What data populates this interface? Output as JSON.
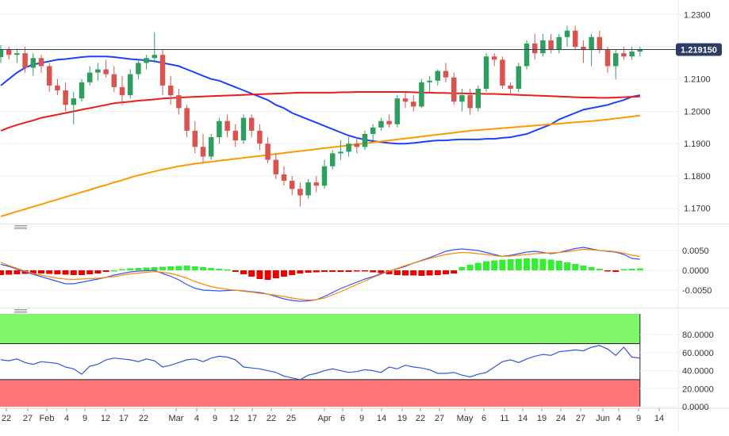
{
  "chart_data": [
    {
      "type": "candlestick",
      "title": "",
      "ylim": [
        1.166,
        1.2335
      ],
      "y_ticks": [
        "1.2300",
        "1.2200",
        "1.2100",
        "1.2000",
        "1.1900",
        "1.1800",
        "1.1700"
      ],
      "x_ticks": [
        "22",
        "27",
        "Feb",
        "4",
        "9",
        "12",
        "17",
        "22",
        "Mar",
        "4",
        "9",
        "12",
        "17",
        "22",
        "25",
        "Apr",
        "6",
        "9",
        "14",
        "19",
        "22",
        "27",
        "May",
        "6",
        "11",
        "14",
        "19",
        "24",
        "27",
        "Jun",
        "4",
        "9",
        "14"
      ],
      "current_price": "1.219150",
      "ohlc": [
        [
          1.2168,
          1.2205,
          1.215,
          1.219
        ],
        [
          1.219,
          1.22,
          1.216,
          1.2175
        ],
        [
          1.2175,
          1.2195,
          1.215,
          1.218
        ],
        [
          1.218,
          1.22,
          1.212,
          1.2135
        ],
        [
          1.2135,
          1.218,
          1.211,
          1.2165
        ],
        [
          1.2165,
          1.2175,
          1.212,
          1.214
        ],
        [
          1.214,
          1.215,
          1.206,
          1.208
        ],
        [
          1.208,
          1.21,
          1.205,
          1.2065
        ],
        [
          1.2065,
          1.209,
          1.2,
          1.202
        ],
        [
          1.202,
          1.206,
          1.196,
          1.204
        ],
        [
          1.204,
          1.21,
          1.203,
          1.209
        ],
        [
          1.209,
          1.214,
          1.208,
          1.212
        ],
        [
          1.212,
          1.215,
          1.2095,
          1.213
        ],
        [
          1.213,
          1.216,
          1.2105,
          1.2115
        ],
        [
          1.2115,
          1.214,
          1.206,
          1.2075
        ],
        [
          1.2075,
          1.211,
          1.202,
          1.205
        ],
        [
          1.205,
          1.213,
          1.204,
          1.2115
        ],
        [
          1.2115,
          1.216,
          1.21,
          1.215
        ],
        [
          1.215,
          1.2175,
          1.213,
          1.2165
        ],
        [
          1.2165,
          1.2245,
          1.215,
          1.2175
        ],
        [
          1.2175,
          1.219,
          1.205,
          1.208
        ],
        [
          1.208,
          1.211,
          1.202,
          1.205
        ],
        [
          1.205,
          1.207,
          1.199,
          1.201
        ],
        [
          1.201,
          1.202,
          1.192,
          1.194
        ],
        [
          1.194,
          1.197,
          1.187,
          1.189
        ],
        [
          1.189,
          1.193,
          1.184,
          1.186
        ],
        [
          1.186,
          1.193,
          1.185,
          1.192
        ],
        [
          1.192,
          1.198,
          1.19,
          1.197
        ],
        [
          1.197,
          1.199,
          1.192,
          1.194
        ],
        [
          1.194,
          1.196,
          1.189,
          1.191
        ],
        [
          1.191,
          1.199,
          1.19,
          1.198
        ],
        [
          1.198,
          1.199,
          1.192,
          1.194
        ],
        [
          1.194,
          1.196,
          1.188,
          1.19
        ],
        [
          1.19,
          1.192,
          1.184,
          1.185
        ],
        [
          1.185,
          1.187,
          1.179,
          1.1805
        ],
        [
          1.1805,
          1.183,
          1.177,
          1.1785
        ],
        [
          1.1785,
          1.18,
          1.174,
          1.176
        ],
        [
          1.176,
          1.178,
          1.1705,
          1.174
        ],
        [
          1.174,
          1.179,
          1.173,
          1.178
        ],
        [
          1.178,
          1.18,
          1.175,
          1.177
        ],
        [
          1.177,
          1.185,
          1.176,
          1.183
        ],
        [
          1.183,
          1.188,
          1.182,
          1.187
        ],
        [
          1.187,
          1.191,
          1.185,
          1.1875
        ],
        [
          1.1875,
          1.192,
          1.186,
          1.19
        ],
        [
          1.19,
          1.192,
          1.187,
          1.189
        ],
        [
          1.189,
          1.194,
          1.188,
          1.193
        ],
        [
          1.193,
          1.196,
          1.191,
          1.195
        ],
        [
          1.195,
          1.198,
          1.194,
          1.197
        ],
        [
          1.197,
          1.199,
          1.195,
          1.196
        ],
        [
          1.196,
          1.205,
          1.195,
          1.204
        ],
        [
          1.204,
          1.206,
          1.201,
          1.203
        ],
        [
          1.203,
          1.205,
          1.2,
          1.2015
        ],
        [
          1.2015,
          1.21,
          1.201,
          1.209
        ],
        [
          1.209,
          1.211,
          1.206,
          1.2095
        ],
        [
          1.2095,
          1.213,
          1.208,
          1.2125
        ],
        [
          1.2125,
          1.215,
          1.209,
          1.2105
        ],
        [
          1.2105,
          1.212,
          1.202,
          1.203
        ],
        [
          1.203,
          1.207,
          1.2,
          1.205
        ],
        [
          1.205,
          1.207,
          1.199,
          1.201
        ],
        [
          1.201,
          1.208,
          1.2,
          1.207
        ],
        [
          1.207,
          1.218,
          1.206,
          1.217
        ],
        [
          1.217,
          1.218,
          1.214,
          1.216
        ],
        [
          1.216,
          1.217,
          1.207,
          1.208
        ],
        [
          1.208,
          1.209,
          1.205,
          1.207
        ],
        [
          1.207,
          1.215,
          1.206,
          1.214
        ],
        [
          1.214,
          1.222,
          1.213,
          1.221
        ],
        [
          1.221,
          1.224,
          1.216,
          1.218
        ],
        [
          1.218,
          1.224,
          1.217,
          1.222
        ],
        [
          1.222,
          1.224,
          1.218,
          1.219
        ],
        [
          1.219,
          1.224,
          1.218,
          1.223
        ],
        [
          1.223,
          1.2265,
          1.22,
          1.225
        ],
        [
          1.225,
          1.2265,
          1.219,
          1.22
        ],
        [
          1.22,
          1.222,
          1.215,
          1.219
        ],
        [
          1.219,
          1.224,
          1.214,
          1.223
        ],
        [
          1.223,
          1.225,
          1.218,
          1.219
        ],
        [
          1.219,
          1.22,
          1.212,
          1.214
        ],
        [
          1.214,
          1.219,
          1.21,
          1.218
        ],
        [
          1.218,
          1.22,
          1.216,
          1.217
        ],
        [
          1.217,
          1.22,
          1.216,
          1.2185
        ],
        [
          1.2185,
          1.22,
          1.217,
          1.2192
        ]
      ],
      "series": [
        {
          "color": "#1e40ff",
          "values": [
            1.208,
            1.21,
            1.212,
            1.2135,
            1.2145,
            1.215,
            1.2155,
            1.216,
            1.2162,
            1.2165,
            1.2168,
            1.217,
            1.217,
            1.217,
            1.2168,
            1.2165,
            1.2162,
            1.216,
            1.2158,
            1.2155,
            1.215,
            1.2145,
            1.214,
            1.213,
            1.212,
            1.211,
            1.21,
            1.2095,
            1.2085,
            1.2075,
            1.2065,
            1.2055,
            1.2045,
            1.2035,
            1.202,
            1.201,
            1.1995,
            1.1985,
            1.1975,
            1.1965,
            1.1955,
            1.1945,
            1.1935,
            1.1925,
            1.1918,
            1.1912,
            1.1908,
            1.1905,
            1.1902,
            1.19,
            1.19,
            1.1902,
            1.1905,
            1.1908,
            1.191,
            1.191,
            1.1912,
            1.1913,
            1.1913,
            1.1913,
            1.1915,
            1.1915,
            1.1918,
            1.192,
            1.1925,
            1.193,
            1.194,
            1.195,
            1.196,
            1.1975,
            1.1985,
            1.1995,
            1.2005,
            1.201,
            1.2015,
            1.202,
            1.2028,
            1.2035,
            1.2045,
            1.205
          ]
        },
        {
          "color": "#ee1c1c",
          "values": [
            1.194,
            1.195,
            1.1958,
            1.1965,
            1.1972,
            1.198,
            1.1985,
            1.199,
            1.1995,
            1.2,
            1.2005,
            1.201,
            1.2015,
            1.202,
            1.2025,
            1.2028,
            1.203,
            1.2033,
            1.2035,
            1.2037,
            1.204,
            1.2041,
            1.2043,
            1.2044,
            1.2045,
            1.2046,
            1.2047,
            1.2048,
            1.2049,
            1.205,
            1.2051,
            1.2052,
            1.2053,
            1.2054,
            1.2055,
            1.2056,
            1.2057,
            1.2058,
            1.2058,
            1.2058,
            1.2058,
            1.2058,
            1.2059,
            1.2059,
            1.206,
            1.206,
            1.206,
            1.206,
            1.206,
            1.206,
            1.206,
            1.2059,
            1.2058,
            1.2058,
            1.2057,
            1.2057,
            1.2056,
            1.2056,
            1.2055,
            1.2055,
            1.2054,
            1.2054,
            1.2053,
            1.2052,
            1.2051,
            1.205,
            1.2049,
            1.2048,
            1.2047,
            1.2046,
            1.2045,
            1.2044,
            1.2043,
            1.2043,
            1.2042,
            1.2042,
            1.2043,
            1.2044,
            1.2045,
            1.2046
          ]
        },
        {
          "color": "#ff9900",
          "values": [
            1.1675,
            1.1682,
            1.169,
            1.1697,
            1.1705,
            1.1712,
            1.172,
            1.1727,
            1.1735,
            1.1742,
            1.175,
            1.1757,
            1.1765,
            1.1772,
            1.178,
            1.1787,
            1.1795,
            1.1802,
            1.1808,
            1.1814,
            1.182,
            1.1825,
            1.183,
            1.1834,
            1.1838,
            1.1841,
            1.1844,
            1.1847,
            1.185,
            1.1853,
            1.1856,
            1.1859,
            1.1862,
            1.1865,
            1.1868,
            1.1871,
            1.1874,
            1.1877,
            1.188,
            1.1883,
            1.1886,
            1.1889,
            1.1892,
            1.1895,
            1.1898,
            1.1901,
            1.1904,
            1.1907,
            1.191,
            1.1913,
            1.1916,
            1.1919,
            1.1922,
            1.1925,
            1.1928,
            1.1931,
            1.1934,
            1.1937,
            1.194,
            1.1942,
            1.1944,
            1.1946,
            1.1948,
            1.195,
            1.1952,
            1.1954,
            1.1956,
            1.1958,
            1.196,
            1.1962,
            1.1964,
            1.1966,
            1.1968,
            1.197,
            1.1972,
            1.1975,
            1.1978,
            1.1981,
            1.1984,
            1.1987
          ]
        }
      ]
    },
    {
      "type": "macd",
      "title": "",
      "ylim": [
        -0.0088,
        0.0102
      ],
      "y_ticks": [
        "0.0050",
        "0.0000",
        "-0.0050"
      ],
      "histogram": [
        -0.0012,
        -0.0011,
        -0.001,
        -0.0009,
        -0.0008,
        -0.0008,
        -0.0009,
        -0.001,
        -0.0011,
        -0.0012,
        -0.0012,
        -0.001,
        -0.0008,
        -0.0004,
        0.0,
        0.0003,
        0.0005,
        0.0006,
        0.0007,
        0.0008,
        0.0009,
        0.001,
        0.0011,
        0.0012,
        0.001,
        0.0008,
        0.0006,
        0.0004,
        0.0002,
        -0.0004,
        -0.001,
        -0.0016,
        -0.0022,
        -0.0024,
        -0.002,
        -0.0016,
        -0.0012,
        -0.0008,
        -0.0006,
        -0.0005,
        -0.0004,
        -0.0004,
        -0.0004,
        -0.0004,
        -0.0003,
        -0.0003,
        -0.0005,
        -0.0007,
        -0.001,
        -0.0012,
        -0.0013,
        -0.0013,
        -0.0014,
        -0.0013,
        -0.0012,
        -0.001,
        -0.0008,
        0.0008,
        0.0014,
        0.0019,
        0.0023,
        0.0025,
        0.0027,
        0.0028,
        0.0029,
        0.003,
        0.003,
        0.0029,
        0.0027,
        0.0024,
        0.002,
        0.0016,
        0.0012,
        0.0008,
        0.0004,
        -0.0002,
        -0.0004,
        0.0003,
        0.0004,
        0.0005
      ],
      "series": [
        {
          "color": "#3355ff",
          "values": [
            0.0015,
            0.001,
            0.0003,
            -0.0004,
            -0.001,
            -0.0016,
            -0.0022,
            -0.0028,
            -0.0034,
            -0.0034,
            -0.003,
            -0.0026,
            -0.0022,
            -0.0018,
            -0.0012,
            -0.0008,
            -0.0004,
            -0.0002,
            -0.0001,
            0.0,
            -0.0008,
            -0.0015,
            -0.0024,
            -0.0036,
            -0.0045,
            -0.005,
            -0.0051,
            -0.0052,
            -0.0051,
            -0.005,
            -0.0052,
            -0.0054,
            -0.0056,
            -0.006,
            -0.0066,
            -0.0072,
            -0.0076,
            -0.0078,
            -0.0077,
            -0.0074,
            -0.0066,
            -0.0056,
            -0.0046,
            -0.0038,
            -0.003,
            -0.0022,
            -0.0016,
            -0.0008,
            -0.0002,
            0.0004,
            0.001,
            0.0018,
            0.0025,
            0.0032,
            0.004,
            0.0048,
            0.0052,
            0.0054,
            0.0052,
            0.005,
            0.0045,
            0.004,
            0.0035,
            0.0038,
            0.0042,
            0.0046,
            0.0048,
            0.0045,
            0.0042,
            0.0045,
            0.005,
            0.0055,
            0.0058,
            0.0054,
            0.005,
            0.0048,
            0.0046,
            0.004,
            0.003,
            0.0028
          ]
        },
        {
          "color": "#ff8800",
          "values": [
            0.002,
            0.0012,
            0.0005,
            -0.0002,
            -0.0008,
            -0.0012,
            -0.0016,
            -0.002,
            -0.0022,
            -0.0023,
            -0.0022,
            -0.0021,
            -0.002,
            -0.0018,
            -0.0016,
            -0.0012,
            -0.0009,
            -0.0007,
            -0.0005,
            -0.0003,
            -0.0005,
            -0.0008,
            -0.0013,
            -0.002,
            -0.0028,
            -0.0035,
            -0.0041,
            -0.0045,
            -0.0048,
            -0.005,
            -0.0053,
            -0.0055,
            -0.0058,
            -0.006,
            -0.0063,
            -0.0066,
            -0.007,
            -0.0073,
            -0.0075,
            -0.0074,
            -0.007,
            -0.0062,
            -0.0054,
            -0.0045,
            -0.0036,
            -0.0027,
            -0.0018,
            -0.001,
            -0.0002,
            0.0005,
            0.0012,
            0.0018,
            0.0024,
            0.003,
            0.0035,
            0.004,
            0.0043,
            0.0045,
            0.0044,
            0.0042,
            0.004,
            0.0037,
            0.0035,
            0.0036,
            0.0038,
            0.004,
            0.0042,
            0.0043,
            0.0044,
            0.0045,
            0.0047,
            0.005,
            0.0053,
            0.0052,
            0.005,
            0.0049,
            0.0047,
            0.0043,
            0.0038,
            0.0035
          ]
        }
      ]
    },
    {
      "type": "rsi",
      "title": "",
      "ylim": [
        0,
        103
      ],
      "y_ticks": [
        "80.0000",
        "60.0000",
        "40.0000",
        "20.0000",
        "0.0000"
      ],
      "overbought": 70,
      "oversold": 30,
      "zone_colors": {
        "overbought": "#7ff56b",
        "oversold": "#ff7474"
      },
      "series": [
        {
          "color": "#3355dd",
          "values": [
            52,
            51,
            53,
            49,
            47,
            50,
            49,
            48,
            44,
            42,
            36,
            45,
            47,
            52,
            54,
            53,
            52,
            50,
            53,
            51,
            44,
            46,
            49,
            52,
            53,
            50,
            54,
            56,
            55,
            52,
            44,
            43,
            42,
            40,
            38,
            34,
            32,
            30,
            35,
            37,
            40,
            42,
            40,
            38,
            39,
            41,
            40,
            38,
            44,
            42,
            46,
            44,
            43,
            41,
            37,
            37,
            38,
            35,
            33,
            36,
            38,
            44,
            50,
            52,
            49,
            53,
            56,
            58,
            57,
            61,
            62,
            63,
            62,
            66,
            68,
            64,
            57,
            66,
            55,
            54
          ]
        }
      ]
    }
  ]
}
